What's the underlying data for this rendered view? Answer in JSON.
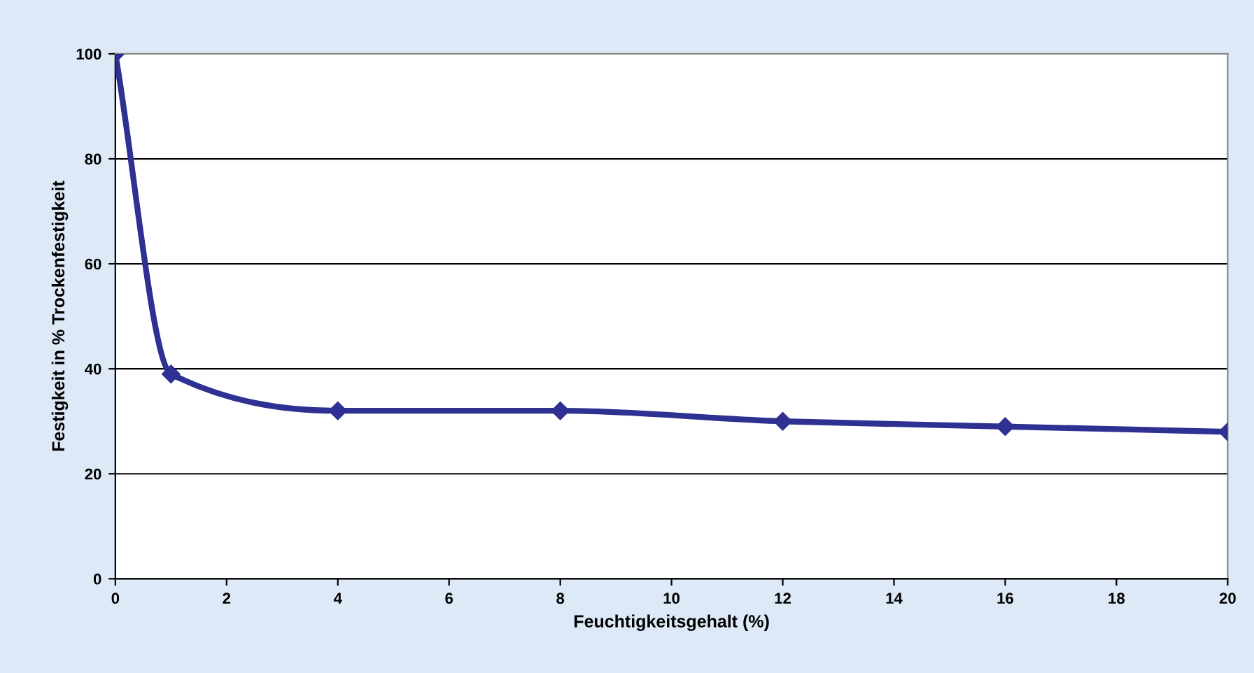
{
  "chart_data": {
    "type": "line",
    "xlabel": "Feuchtigkeitsgehalt (%)",
    "ylabel": "Festigkeit in % Trockenfestigkeit",
    "x": [
      0,
      1,
      4,
      8,
      12,
      16,
      20
    ],
    "series": [
      {
        "color": "#2e3192",
        "values": [
          100,
          39,
          32,
          32,
          30,
          29,
          28
        ]
      }
    ],
    "xlim": [
      0,
      20
    ],
    "xticks": [
      0,
      2,
      4,
      6,
      8,
      10,
      12,
      14,
      16,
      18,
      20
    ],
    "ylim": [
      0,
      100
    ],
    "yticks": [
      0,
      20,
      40,
      60,
      80,
      100
    ],
    "grid": "y",
    "marker": "diamond",
    "line_style": "solid",
    "legend": false
  }
}
